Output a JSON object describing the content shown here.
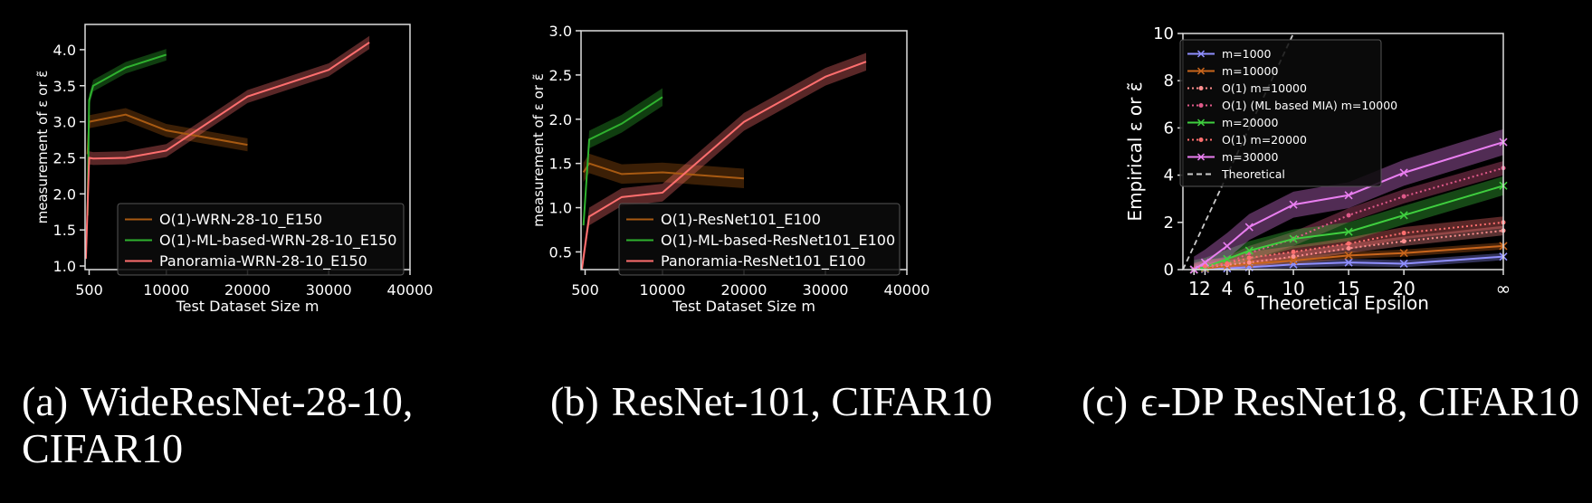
{
  "colors": {
    "background": "#000000",
    "axis": "#dddddd",
    "text": "#ffffff",
    "legend_bg": "#0c0c0c",
    "legend_border": "#555555"
  },
  "captions": [
    {
      "label": "(a)",
      "text": "WideResNet-28-10, CIFAR10"
    },
    {
      "label": "(b)",
      "text": "ResNet-101, CIFAR10"
    },
    {
      "label": "(c)",
      "text": "ϵ-DP ResNet18, CIFAR10"
    }
  ],
  "chart_data": [
    {
      "type": "line",
      "xlabel": "Test Dataset Size m",
      "ylabel": "measurement of ε or ε̃",
      "xlim": [
        0,
        40000
      ],
      "ylim": [
        0.95,
        4.35
      ],
      "xticks": [
        500,
        10000,
        20000,
        30000,
        40000
      ],
      "yticks": [
        1.0,
        1.5,
        2.0,
        2.5,
        3.0,
        3.5,
        4.0
      ],
      "legend": "lower-right",
      "grid": false,
      "series": [
        {
          "name": "O(1)-WRN-28-10_E150",
          "color": "#a85a12",
          "x": [
            300,
            500,
            5000,
            10000,
            20000
          ],
          "y": [
            2.55,
            3.0,
            3.1,
            2.88,
            2.68
          ],
          "band": 0.09
        },
        {
          "name": "O(1)-ML-based-WRN-28-10_E150",
          "color": "#2fb22f",
          "x": [
            300,
            500,
            1000,
            5000,
            10000
          ],
          "y": [
            1.7,
            3.3,
            3.5,
            3.75,
            3.93
          ],
          "band": 0.08
        },
        {
          "name": "Panoramia-WRN-28-10_E150",
          "color": "#ff6f6f",
          "x": [
            100,
            500,
            1000,
            5000,
            10000,
            20000,
            30000,
            35000
          ],
          "y": [
            1.1,
            2.5,
            2.49,
            2.5,
            2.6,
            3.35,
            3.72,
            4.1
          ],
          "band": 0.09
        }
      ]
    },
    {
      "type": "line",
      "xlabel": "Test Dataset Size m",
      "ylabel": "measurement of ε or ε̃",
      "xlim": [
        0,
        40000
      ],
      "ylim": [
        0.3,
        3.0
      ],
      "xticks": [
        500,
        10000,
        20000,
        30000,
        40000
      ],
      "yticks": [
        0.5,
        1.0,
        1.5,
        2.0,
        2.5,
        3.0
      ],
      "legend": "lower-right",
      "grid": false,
      "series": [
        {
          "name": "O(1)-ResNet101_E100",
          "color": "#a85a12",
          "x": [
            300,
            1000,
            5000,
            10000,
            20000
          ],
          "y": [
            1.4,
            1.5,
            1.38,
            1.4,
            1.33
          ],
          "band": 0.11
        },
        {
          "name": "O(1)-ML-based-ResNet101_E100",
          "color": "#2fb22f",
          "x": [
            300,
            1000,
            5000,
            10000
          ],
          "y": [
            0.8,
            1.77,
            1.95,
            2.25
          ],
          "band": 0.1
        },
        {
          "name": "Panoramia-ResNet101_E100",
          "color": "#ff6f6f",
          "x": [
            100,
            1000,
            5000,
            10000,
            20000,
            30000,
            35000
          ],
          "y": [
            0.3,
            0.9,
            1.12,
            1.17,
            1.97,
            2.48,
            2.65
          ],
          "band": 0.1
        }
      ]
    },
    {
      "type": "line",
      "xlabel": "Theoretical Epsilon",
      "ylabel": "Empirical ε or ε̃",
      "xlim": [
        0,
        29
      ],
      "ylim": [
        0,
        10
      ],
      "xticks": [
        1,
        2,
        4,
        6,
        10,
        15,
        20,
        29
      ],
      "xticklabels": [
        "1",
        "2",
        "4",
        "6",
        "10",
        "15",
        "20",
        "∞"
      ],
      "yticks": [
        0,
        2,
        4,
        6,
        8,
        10
      ],
      "legend": "top-left",
      "grid": false,
      "theoretical_line": {
        "name": "Theoretical",
        "color": "#cccccc",
        "x": [
          0,
          10
        ],
        "y": [
          0,
          10
        ]
      },
      "series": [
        {
          "name": "m=1000",
          "color": "#8f8fff",
          "style": "solid",
          "marker": "x",
          "x": [
            1,
            2,
            4,
            6,
            10,
            15,
            20,
            29
          ],
          "y": [
            0.0,
            0.02,
            0.05,
            0.1,
            0.22,
            0.3,
            0.25,
            0.55
          ],
          "band": 0.15
        },
        {
          "name": "m=10000",
          "color": "#c8651c",
          "style": "solid",
          "marker": "x",
          "x": [
            1,
            2,
            4,
            6,
            10,
            15,
            20,
            29
          ],
          "y": [
            0.0,
            0.05,
            0.15,
            0.25,
            0.38,
            0.6,
            0.7,
            1.0
          ],
          "band": 0.15
        },
        {
          "name": "O(1) m=10000",
          "color": "#ff8f8f",
          "style": "dotted",
          "marker": "dot",
          "x": [
            1,
            2,
            4,
            6,
            10,
            15,
            20,
            29
          ],
          "y": [
            0.0,
            0.1,
            0.2,
            0.3,
            0.55,
            0.9,
            1.2,
            1.65
          ],
          "band": 0.2
        },
        {
          "name": "O(1) (ML based MIA) m=10000",
          "color": "#e05a8a",
          "style": "dotted",
          "marker": "dot",
          "x": [
            1,
            2,
            4,
            6,
            10,
            15,
            20,
            29
          ],
          "y": [
            0.0,
            0.1,
            0.25,
            0.7,
            1.3,
            2.3,
            3.1,
            4.3
          ],
          "band": 0.3
        },
        {
          "name": "m=20000",
          "color": "#3fcf3f",
          "style": "solid",
          "marker": "x",
          "x": [
            1,
            2,
            4,
            6,
            10,
            15,
            20,
            29
          ],
          "y": [
            0.0,
            0.1,
            0.45,
            0.8,
            1.3,
            1.6,
            2.3,
            3.55
          ],
          "band": 0.4
        },
        {
          "name": "O(1) m=20000",
          "color": "#ff6f6f",
          "style": "dotted",
          "marker": "dot",
          "x": [
            1,
            2,
            4,
            6,
            10,
            15,
            20,
            29
          ],
          "y": [
            0.0,
            0.15,
            0.25,
            0.5,
            0.75,
            1.1,
            1.55,
            2.0
          ],
          "band": 0.25
        },
        {
          "name": "m=30000",
          "color": "#e97ef0",
          "style": "solid",
          "marker": "x",
          "x": [
            1,
            2,
            4,
            6,
            10,
            15,
            20,
            29
          ],
          "y": [
            0.0,
            0.3,
            1.0,
            1.8,
            2.75,
            3.15,
            4.1,
            5.4
          ],
          "band": 0.55
        }
      ]
    }
  ]
}
